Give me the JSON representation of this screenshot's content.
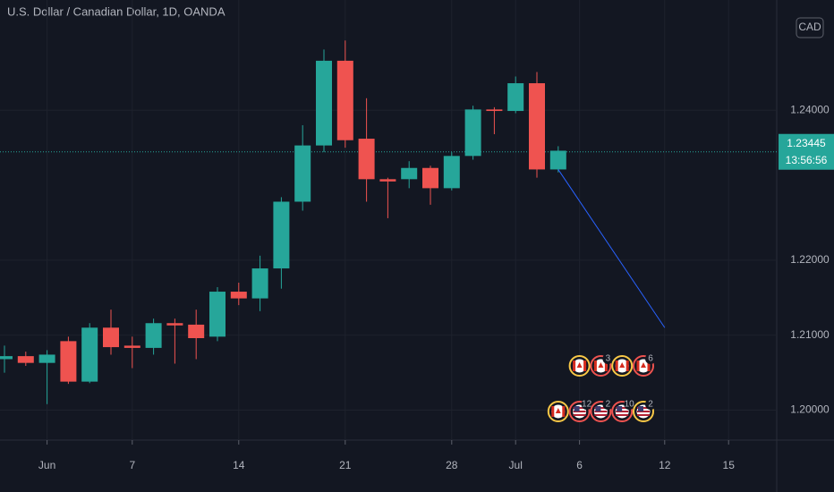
{
  "chart_data": {
    "type": "candlestick",
    "title": "U.S. Dollar / Canadian Dollar, 1D, OANDA",
    "currency_button": "CAD",
    "categories": [
      null,
      null,
      "Jun",
      null,
      null,
      null,
      "7",
      null,
      null,
      null,
      null,
      "14",
      null,
      null,
      null,
      null,
      "21",
      null,
      null,
      null,
      null,
      "28",
      null,
      null,
      "Jul",
      null,
      null,
      "6",
      null,
      null,
      null,
      "12",
      null,
      null,
      "15"
    ],
    "open": [
      1.2068,
      1.2072,
      1.2063,
      1.2092,
      1.2038,
      1.211,
      1.2086,
      1.2083,
      1.2116,
      1.2114,
      1.2098,
      1.2158,
      1.2149,
      1.2189,
      1.2278,
      1.2353,
      1.2466,
      1.2362,
      1.2308,
      1.2308,
      1.2323,
      1.2296,
      1.2339,
      1.2401,
      1.2399,
      1.2436,
      1.2321,
      null,
      null,
      null,
      null,
      null,
      null,
      null,
      null
    ],
    "high": [
      1.2086,
      1.2078,
      1.208,
      1.2098,
      1.2116,
      1.2134,
      1.2098,
      1.2122,
      1.2122,
      1.2134,
      1.2164,
      1.217,
      1.2206,
      1.2284,
      1.238,
      1.2481,
      1.2493,
      1.2416,
      1.231,
      1.2332,
      1.2326,
      1.2344,
      1.2406,
      1.2404,
      1.2445,
      1.2451,
      1.2352,
      null,
      null,
      null,
      null,
      null,
      null,
      null,
      null
    ],
    "low": [
      1.205,
      1.2059,
      1.2008,
      1.2035,
      1.2036,
      1.2074,
      1.2056,
      1.2074,
      1.2062,
      1.2068,
      1.2092,
      1.214,
      1.2132,
      1.2162,
      1.2266,
      1.2344,
      1.235,
      1.2278,
      1.2256,
      1.2296,
      1.2274,
      1.2293,
      1.2334,
      1.2368,
      1.2396,
      1.231,
      1.2317,
      null,
      null,
      null,
      null,
      null,
      null,
      null,
      null
    ],
    "close": [
      1.2072,
      1.2063,
      1.2074,
      1.2038,
      1.211,
      1.2084,
      1.2083,
      1.2116,
      1.2113,
      1.2096,
      1.2158,
      1.2149,
      1.2189,
      1.2278,
      1.2353,
      1.2466,
      1.236,
      1.2308,
      1.2305,
      1.2323,
      1.2296,
      1.2339,
      1.2401,
      1.2399,
      1.2436,
      1.2321,
      1.2346,
      null,
      null,
      null,
      null,
      null,
      null,
      null,
      null
    ],
    "up_color": "#26a69a",
    "down_color": "#ef5350",
    "ylim": [
      1.196,
      1.2547
    ],
    "yticks": [
      {
        "value": 1.2,
        "label": "1.20000"
      },
      {
        "value": 1.21,
        "label": "1.21000"
      },
      {
        "value": 1.22,
        "label": "1.22000"
      },
      {
        "value": 1.24,
        "label": "1.24000"
      }
    ],
    "grid": true,
    "last_price": 1.23445,
    "countdown": "13:56:56",
    "trend_line": {
      "start": {
        "index": 26,
        "value": 1.2321
      },
      "end": {
        "index": 31,
        "value": 1.211
      },
      "color": "#2962ff"
    },
    "events": [
      {
        "at": 26,
        "items": [
          {
            "country": "CA",
            "ring": "#f9c846"
          }
        ]
      },
      {
        "at": 27,
        "items": [
          {
            "country": "US",
            "ring": "#ef5350",
            "count": 12
          },
          {
            "country": "CA",
            "ring": "#f9c846"
          }
        ]
      },
      {
        "at": 28,
        "items": [
          {
            "country": "US",
            "ring": "#ef5350",
            "count": 2
          },
          {
            "country": "CA",
            "ring": "#ef5350",
            "count": 3
          }
        ]
      },
      {
        "at": 29,
        "items": [
          {
            "country": "US",
            "ring": "#ef5350",
            "count": 10
          },
          {
            "country": "CA",
            "ring": "#f9c846"
          }
        ]
      },
      {
        "at": 30,
        "items": [
          {
            "country": "US",
            "ring": "#f9c846",
            "count": 2
          },
          {
            "country": "CA",
            "ring": "#ef5350",
            "count": 6
          }
        ]
      }
    ]
  }
}
